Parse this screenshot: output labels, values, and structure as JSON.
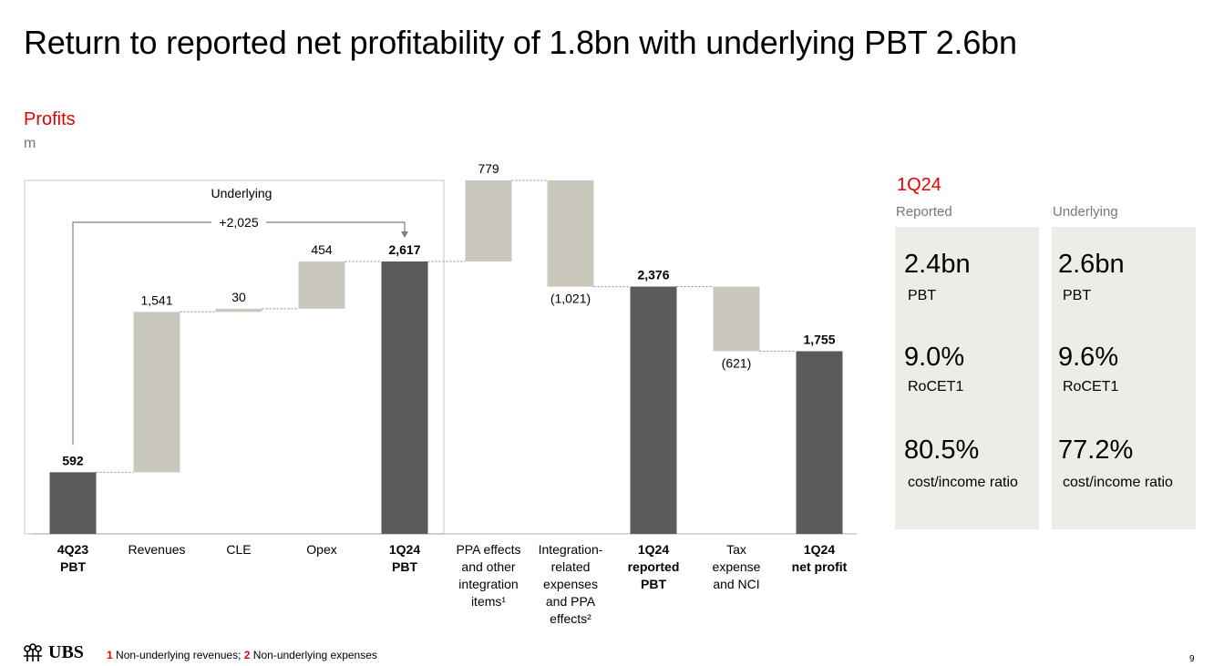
{
  "page": {
    "title": "Return to reported net profitability of 1.8bn with underlying PBT 2.6bn",
    "subtitle": "Profits",
    "unit": "m",
    "page_number": "9"
  },
  "colors": {
    "accent": "#e60000",
    "total_bar": "#5a5b5a",
    "delta_bar": "#cac8bc",
    "kpi_panel": "#edede8"
  },
  "chart_data": {
    "type": "bar",
    "subtype": "waterfall",
    "categories": [
      [
        "4Q23",
        "PBT"
      ],
      [
        "Revenues"
      ],
      [
        "CLE"
      ],
      [
        "Opex"
      ],
      [
        "1Q24",
        "PBT"
      ],
      [
        "PPA effects",
        "and other",
        "integration",
        "items¹"
      ],
      [
        "Integration-",
        "related",
        "expenses",
        "and PPA",
        "effects²"
      ],
      [
        "1Q24",
        "reported",
        "PBT"
      ],
      [
        "Tax",
        "expense",
        "and NCI"
      ],
      [
        "1Q24",
        "net profit"
      ]
    ],
    "values": [
      592,
      1541,
      30,
      454,
      2617,
      779,
      -1021,
      2376,
      -621,
      1755
    ],
    "kinds": [
      "total",
      "delta",
      "delta",
      "delta",
      "total",
      "delta",
      "delta",
      "total",
      "delta",
      "total"
    ],
    "value_labels": [
      "592",
      "1,541",
      "30",
      "454",
      "2,617",
      "779",
      "(1,021)",
      "2,376",
      "(621)",
      "1,755"
    ],
    "group_label": "Underlying",
    "bridge_label": "+2,025",
    "ylim": [
      0,
      3050
    ]
  },
  "kpis": {
    "period": "1Q24",
    "columns": [
      {
        "header": "Reported",
        "items": [
          {
            "value": "2.4bn",
            "label": "PBT"
          },
          {
            "value": "9.0%",
            "label": "RoCET1"
          },
          {
            "value": "80.5%",
            "label": "cost/income ratio"
          }
        ]
      },
      {
        "header": "Underlying",
        "items": [
          {
            "value": "2.6bn",
            "label": "PBT"
          },
          {
            "value": "9.6%",
            "label": "RoCET1"
          },
          {
            "value": "77.2%",
            "label": "cost/income ratio"
          }
        ]
      }
    ]
  },
  "footer": {
    "note1_num": "1",
    "note1_text": " Non-underlying revenues; ",
    "note2_num": "2",
    "note2_text": " Non-underlying expenses",
    "logo_text": "UBS"
  }
}
